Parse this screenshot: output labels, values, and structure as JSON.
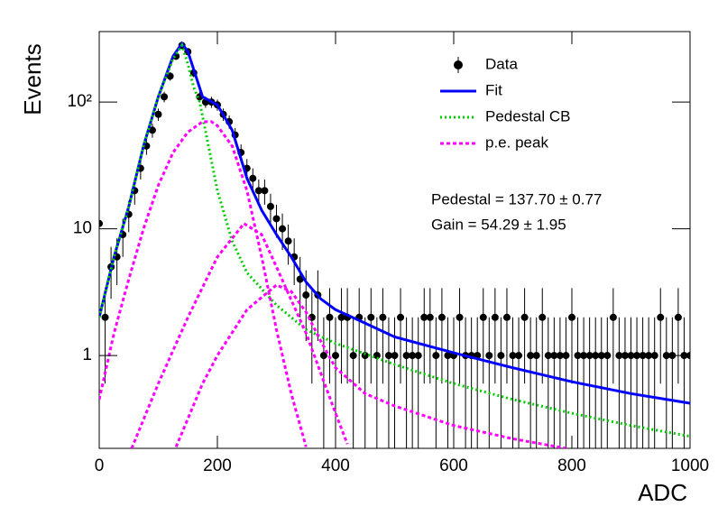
{
  "chart_data": {
    "type": "scatter",
    "x_label": "ADC",
    "y_label": "Events",
    "log_y": true,
    "xlim": [
      0,
      1000
    ],
    "xticks": [
      0,
      200,
      400,
      600,
      800,
      1000
    ],
    "ylim": [
      0.185,
      360
    ],
    "yticks": [
      1,
      10,
      {
        "value": 100,
        "label": "10²"
      }
    ],
    "annotations": [
      "Pedestal = 137.70 ± 0.77",
      "Gain = 54.29 ± 1.95"
    ],
    "series": [
      {
        "name": "Data",
        "color": "#000000",
        "style": "points",
        "x": [
          0,
          10,
          20,
          30,
          40,
          50,
          60,
          70,
          80,
          90,
          100,
          110,
          120,
          130,
          140,
          150,
          160,
          170,
          180,
          190,
          200,
          210,
          220,
          230,
          240,
          250,
          260,
          270,
          280,
          290,
          300,
          310,
          320,
          330,
          340,
          350,
          360,
          370,
          380,
          390,
          400,
          410,
          420,
          430,
          440,
          450,
          460,
          470,
          480,
          490,
          500,
          510,
          520,
          530,
          540,
          550,
          560,
          570,
          580,
          590,
          600,
          610,
          620,
          630,
          640,
          650,
          660,
          670,
          680,
          690,
          700,
          710,
          720,
          730,
          740,
          750,
          760,
          770,
          780,
          790,
          800,
          810,
          820,
          830,
          840,
          850,
          860,
          870,
          880,
          890,
          900,
          910,
          920,
          930,
          940,
          950,
          960,
          970,
          980,
          990,
          1000
        ],
        "values": [
          11,
          2,
          5,
          6,
          9,
          13,
          20,
          30,
          45,
          60,
          80,
          110,
          160,
          230,
          280,
          250,
          170,
          110,
          100,
          100,
          95,
          80,
          70,
          55,
          40,
          30,
          25,
          20,
          20,
          15,
          12,
          10,
          8,
          6,
          4,
          3,
          2,
          3,
          1,
          2,
          1,
          2,
          2,
          1,
          2,
          1,
          2,
          1,
          2,
          1,
          1,
          2,
          1,
          1,
          1,
          2,
          2,
          1,
          2,
          1,
          1,
          2,
          1,
          1,
          1,
          2,
          1,
          2,
          1,
          2,
          1,
          1,
          2,
          1,
          1,
          2,
          1,
          1,
          1,
          1,
          2,
          1,
          1,
          1,
          1,
          1,
          1,
          2,
          1,
          1,
          1,
          1,
          1,
          1,
          1,
          2,
          1,
          1,
          2,
          1,
          1
        ],
        "errors": [
          3.3,
          1.4,
          2.2,
          2.4,
          3,
          3.6,
          4.5,
          5.5,
          6.7,
          7.7,
          8.9,
          10.5,
          12.6,
          15.2,
          16.7,
          15.8,
          13,
          10.5,
          10,
          10,
          9.7,
          8.9,
          8.4,
          7.4,
          6.3,
          5.5,
          5,
          4.5,
          4.5,
          3.9,
          3.5,
          3.2,
          2.8,
          2.4,
          2,
          1.7,
          1.4,
          1.7,
          1,
          1.4,
          1,
          1.4,
          1.4,
          1,
          1.4,
          1,
          1.4,
          1,
          1.4,
          1,
          1,
          1.4,
          1,
          1,
          1,
          1.4,
          1.4,
          1,
          1.4,
          1,
          1,
          1.4,
          1,
          1,
          1,
          1.4,
          1,
          1.4,
          1,
          1.4,
          1,
          1,
          1.4,
          1,
          1,
          1.4,
          1,
          1,
          1,
          1,
          1.4,
          1,
          1,
          1,
          1,
          1,
          1,
          1.4,
          1,
          1,
          1,
          1,
          1,
          1,
          1,
          1.4,
          1,
          1,
          1.4,
          1,
          1
        ]
      },
      {
        "name": "Fit",
        "color": "#0000ff",
        "style": "solid",
        "x": [
          0,
          25,
          50,
          75,
          100,
          125,
          140,
          150,
          175,
          200,
          225,
          250,
          275,
          300,
          325,
          350,
          375,
          400,
          450,
          500,
          600,
          700,
          800,
          900,
          1000
        ],
        "values": [
          2,
          6,
          15,
          45,
          110,
          230,
          290,
          250,
          110,
          95,
          60,
          25,
          14,
          9,
          6,
          3.8,
          2.8,
          2.3,
          1.8,
          1.4,
          1.05,
          0.8,
          0.62,
          0.5,
          0.42
        ]
      },
      {
        "name": "Pedestal CB",
        "color": "#00cc00",
        "style": "dotted",
        "x": [
          0,
          25,
          50,
          75,
          100,
          125,
          140,
          150,
          160,
          170,
          200,
          225,
          250,
          300,
          350,
          400,
          500,
          600,
          700,
          800,
          900,
          1000
        ],
        "values": [
          2,
          6,
          15,
          45,
          110,
          220,
          280,
          200,
          130,
          100,
          20,
          8,
          4.5,
          2.5,
          1.6,
          1.25,
          0.85,
          0.6,
          0.45,
          0.35,
          0.28,
          0.23
        ]
      },
      {
        "name": "p.e. peak",
        "color": "#ff00ff",
        "style": "dashed",
        "x": [
          0,
          25,
          50,
          75,
          100,
          125,
          150,
          175,
          190,
          200,
          225,
          250,
          275,
          300,
          325,
          350
        ],
        "values": [
          0.45,
          1.5,
          4,
          10,
          22,
          40,
          58,
          70,
          70,
          65,
          45,
          20,
          6,
          1.6,
          0.5,
          0.19
        ]
      },
      {
        "color": "#ff00ff",
        "style": "dashed",
        "x": [
          55,
          100,
          150,
          200,
          245,
          275,
          300,
          350,
          400,
          420
        ],
        "values": [
          0.185,
          0.6,
          2,
          6,
          11,
          9,
          5,
          1.5,
          0.35,
          0.2
        ]
      },
      {
        "color": "#ff00ff",
        "style": "dashed",
        "x": [
          130,
          175,
          200,
          250,
          300,
          325,
          350,
          375,
          400,
          450,
          500,
          600,
          700,
          790
        ],
        "values": [
          0.19,
          0.6,
          1,
          2.3,
          3.6,
          3.2,
          2.2,
          1.3,
          0.8,
          0.5,
          0.4,
          0.28,
          0.22,
          0.185
        ]
      }
    ]
  }
}
